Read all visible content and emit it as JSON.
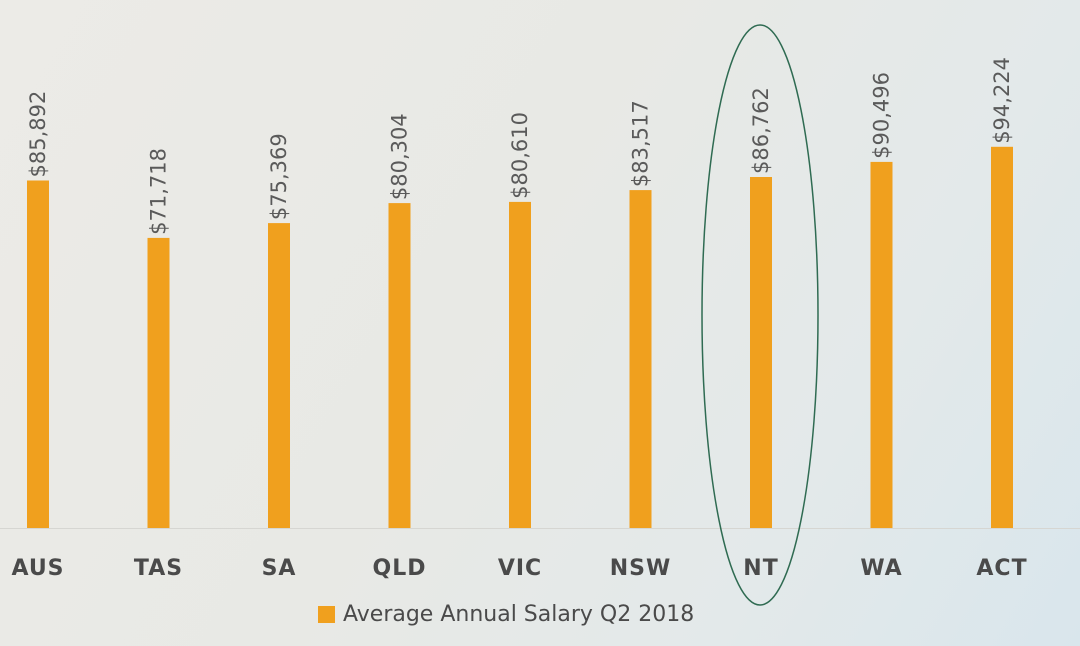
{
  "chart_data": {
    "type": "bar",
    "categories": [
      "AUS",
      "TAS",
      "SA",
      "QLD",
      "VIC",
      "NSW",
      "NT",
      "WA",
      "ACT"
    ],
    "series": [
      {
        "name": "Average Annual Salary Q2 2018",
        "values": [
          85892,
          71718,
          75369,
          80304,
          80610,
          83517,
          86762,
          90496,
          94224
        ],
        "labels": [
          "$85,892",
          "$71,718",
          "$75,369",
          "$80,304",
          "$80,610",
          "$83,517",
          "$86,762",
          "$90,496",
          "$94,224"
        ]
      }
    ],
    "title": "",
    "xlabel": "",
    "ylabel": "",
    "ylim": [
      0,
      100000
    ],
    "grid": false,
    "legend_position": "bottom-center",
    "bar_color": "#f0a01e",
    "highlight": {
      "category": "NT",
      "shape": "ellipse",
      "color": "#2f6b52"
    }
  }
}
